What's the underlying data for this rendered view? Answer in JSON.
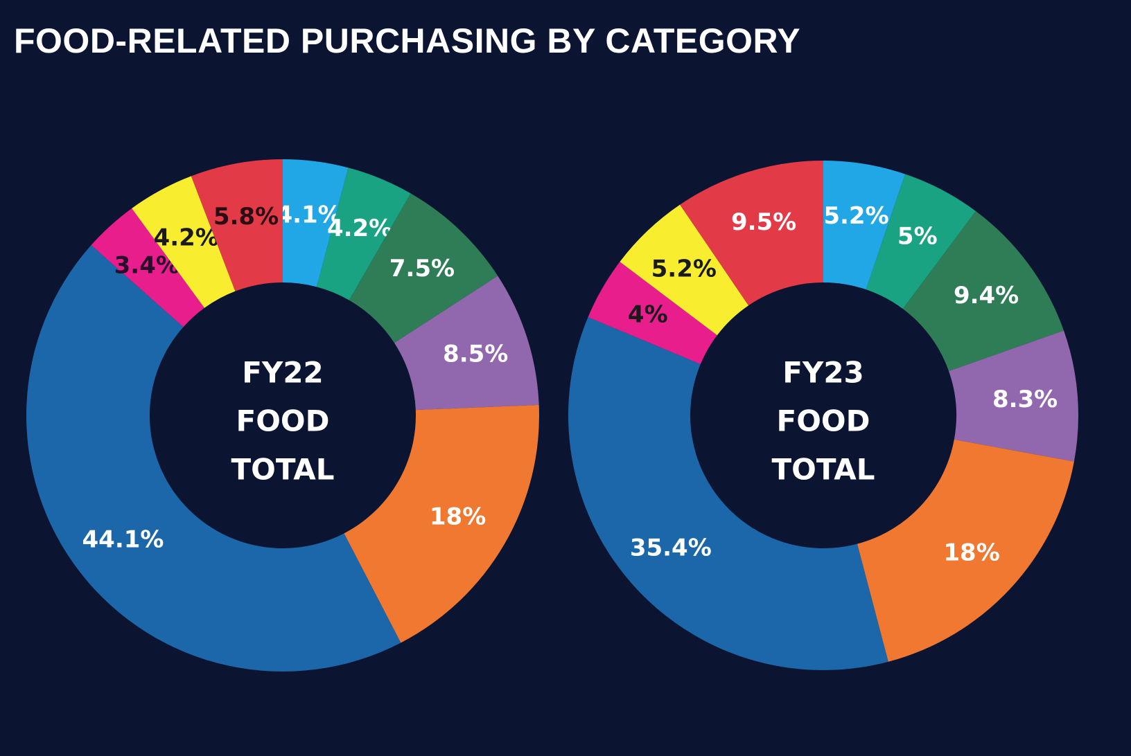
{
  "title": "FOOD-RELATED PURCHASING BY CATEGORY",
  "chart_data": [
    {
      "type": "pie",
      "center_label": [
        "FY22",
        "FOOD",
        "TOTAL"
      ],
      "slices": [
        {
          "label": "4.1%",
          "value": 4.1,
          "color": "#22a7e6",
          "label_color": "#ffffff"
        },
        {
          "label": "4.2%",
          "value": 4.2,
          "color": "#19a383",
          "label_color": "#ffffff"
        },
        {
          "label": "7.5%",
          "value": 7.5,
          "color": "#2f7d57",
          "label_color": "#ffffff"
        },
        {
          "label": "8.5%",
          "value": 8.5,
          "color": "#9167ad",
          "label_color": "#ffffff"
        },
        {
          "label": "18%",
          "value": 18.0,
          "color": "#f07830",
          "label_color": "#ffffff"
        },
        {
          "label": "44.1%",
          "value": 44.1,
          "color": "#1b67a9",
          "label_color": "#ffffff"
        },
        {
          "label": "3.4%",
          "value": 3.4,
          "color": "#e81e8c",
          "label_color": "#2a0d2a"
        },
        {
          "label": "4.2%",
          "value": 4.2,
          "color": "#f8ed2e",
          "label_color": "#1a1a1a"
        },
        {
          "label": "5.8%",
          "value": 5.8,
          "color": "#e23a47",
          "label_color": "#2a0d14"
        }
      ]
    },
    {
      "type": "pie",
      "center_label": [
        "FY23",
        "FOOD",
        "TOTAL"
      ],
      "slices": [
        {
          "label": "5.2%",
          "value": 5.2,
          "color": "#22a7e6",
          "label_color": "#ffffff"
        },
        {
          "label": "5%",
          "value": 5.0,
          "color": "#19a383",
          "label_color": "#ffffff"
        },
        {
          "label": "9.4%",
          "value": 9.4,
          "color": "#2f7d57",
          "label_color": "#ffffff"
        },
        {
          "label": "8.3%",
          "value": 8.3,
          "color": "#9167ad",
          "label_color": "#ffffff"
        },
        {
          "label": "18%",
          "value": 18.0,
          "color": "#f07830",
          "label_color": "#ffffff"
        },
        {
          "label": "35.4%",
          "value": 35.4,
          "color": "#1b67a9",
          "label_color": "#ffffff"
        },
        {
          "label": "4%",
          "value": 4.0,
          "color": "#e81e8c",
          "label_color": "#1a1a1a"
        },
        {
          "label": "5.2%",
          "value": 5.2,
          "color": "#f8ed2e",
          "label_color": "#1a1a1a"
        },
        {
          "label": "9.5%",
          "value": 9.5,
          "color": "#e23a47",
          "label_color": "#ffffff"
        }
      ]
    }
  ]
}
